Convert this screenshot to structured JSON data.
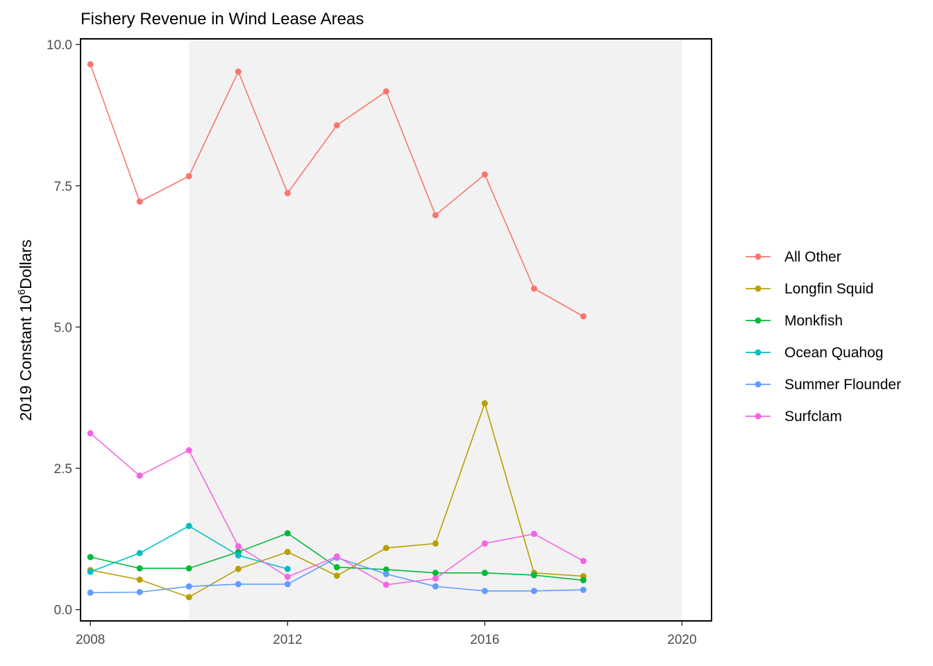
{
  "chart_data": {
    "type": "line",
    "title": "Fishery Revenue in Wind Lease Areas",
    "xlabel": "",
    "ylabel": "2019 Constant 10",
    "ylabel_sup": "6",
    "ylabel_tail": "Dollars",
    "xlim": [
      2007.8,
      2020.6
    ],
    "ylim": [
      -0.2,
      10.1
    ],
    "x_ticks": [
      2008,
      2012,
      2016,
      2020
    ],
    "y_ticks": [
      0,
      2.5,
      5,
      7.5,
      10
    ],
    "x_tick_labels": [
      "2008",
      "2012",
      "2016",
      "2020"
    ],
    "y_tick_labels": [
      "0.0",
      "2.5",
      "5.0",
      "7.5",
      "10.0"
    ],
    "shaded_x_range": [
      2010,
      2020
    ],
    "grid": false,
    "legend_position": "right",
    "x": [
      2008,
      2009,
      2010,
      2011,
      2012,
      2013,
      2014,
      2015,
      2016,
      2017,
      2018
    ],
    "series": [
      {
        "name": "All Other",
        "color": "#F8766D",
        "points": [
          [
            2008,
            9.65
          ],
          [
            2009,
            7.22
          ],
          [
            2010,
            7.67
          ],
          [
            2011,
            9.52
          ],
          [
            2012,
            7.37
          ],
          [
            2013,
            8.57
          ],
          [
            2014,
            9.17
          ],
          [
            2015,
            6.98
          ],
          [
            2016,
            7.7
          ],
          [
            2017,
            5.68
          ],
          [
            2018,
            5.19
          ]
        ]
      },
      {
        "name": "Longfin Squid",
        "color": "#B79F00",
        "points": [
          [
            2008,
            0.7
          ],
          [
            2009,
            0.53
          ],
          [
            2010,
            0.22
          ],
          [
            2011,
            0.72
          ],
          [
            2012,
            1.02
          ],
          [
            2013,
            0.6
          ],
          [
            2014,
            1.09
          ],
          [
            2015,
            1.17
          ],
          [
            2016,
            3.65
          ],
          [
            2017,
            0.65
          ],
          [
            2018,
            0.59
          ]
        ]
      },
      {
        "name": "Monkfish",
        "color": "#00BA38",
        "points": [
          [
            2008,
            0.93
          ],
          [
            2009,
            0.73
          ],
          [
            2010,
            0.73
          ],
          [
            2011,
            1.02
          ],
          [
            2012,
            1.35
          ],
          [
            2013,
            0.75
          ],
          [
            2014,
            0.71
          ],
          [
            2015,
            0.65
          ],
          [
            2016,
            0.65
          ],
          [
            2017,
            0.61
          ],
          [
            2018,
            0.52
          ]
        ]
      },
      {
        "name": "Ocean Quahog",
        "color": "#00BFC4",
        "points": [
          [
            2008,
            0.67
          ],
          [
            2009,
            1.0
          ],
          [
            2010,
            1.48
          ],
          [
            2011,
            0.96
          ],
          [
            2012,
            0.72
          ]
        ]
      },
      {
        "name": "Summer Flounder",
        "color": "#619CFF",
        "points": [
          [
            2008,
            0.3
          ],
          [
            2009,
            0.31
          ],
          [
            2010,
            0.41
          ],
          [
            2011,
            0.45
          ],
          [
            2012,
            0.45
          ],
          [
            2013,
            0.92
          ],
          [
            2014,
            0.63
          ],
          [
            2015,
            0.41
          ],
          [
            2016,
            0.33
          ],
          [
            2017,
            0.33
          ],
          [
            2018,
            0.35
          ]
        ]
      },
      {
        "name": "Surfclam",
        "color": "#F564E3",
        "points": [
          [
            2008,
            3.12
          ],
          [
            2009,
            2.37
          ],
          [
            2010,
            2.82
          ],
          [
            2011,
            1.12
          ],
          [
            2012,
            0.58
          ],
          [
            2013,
            0.94
          ],
          [
            2014,
            0.44
          ],
          [
            2015,
            0.55
          ],
          [
            2016,
            1.17
          ],
          [
            2017,
            1.34
          ],
          [
            2018,
            0.86
          ]
        ]
      }
    ]
  }
}
